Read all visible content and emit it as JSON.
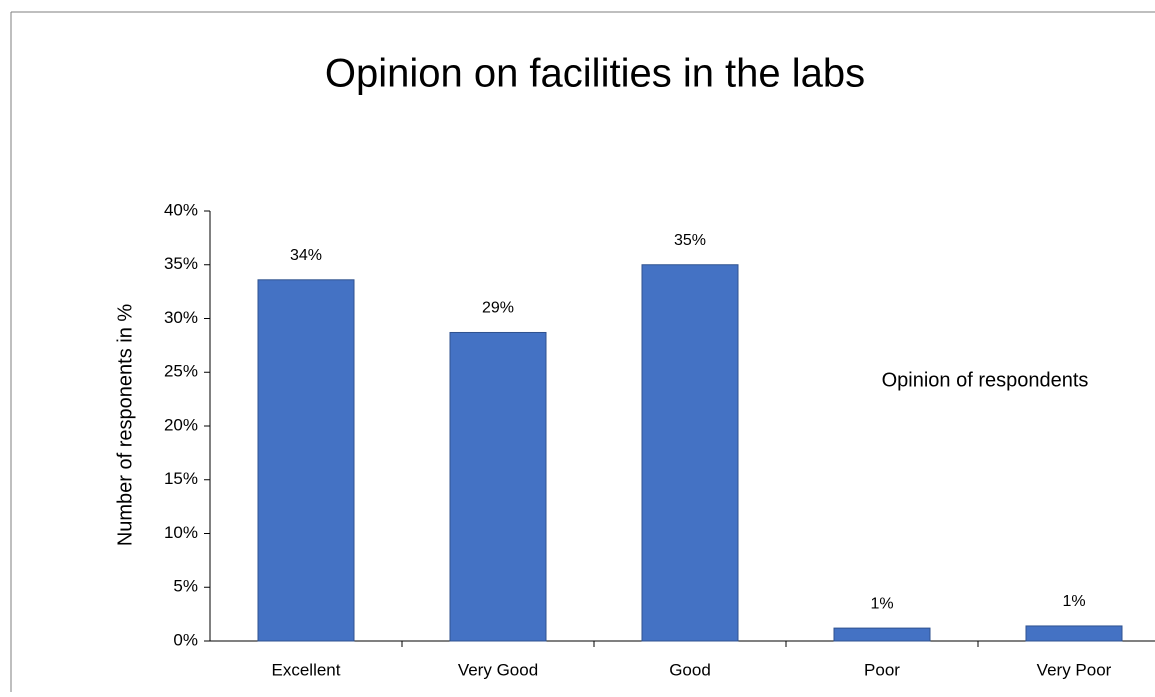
{
  "chart_data": {
    "type": "bar",
    "title": "Opinion on facilities in the labs",
    "y_label": "Number of responents in %",
    "annotation": "Opinion of respondents",
    "categories": [
      "Excellent",
      "Very Good",
      "Good",
      "Poor",
      "Very Poor"
    ],
    "values": [
      33.6,
      28.7,
      35,
      1.2,
      1.4
    ],
    "value_labels": [
      "34%",
      "29%",
      "35%",
      "1%",
      "1%"
    ],
    "color": "#4472c4",
    "ylim": [
      0,
      40
    ],
    "yticks": [
      {
        "value": 0,
        "label": "0%"
      },
      {
        "value": 5,
        "label": "5%"
      },
      {
        "value": 10,
        "label": "10%"
      },
      {
        "value": 15,
        "label": "15%"
      },
      {
        "value": 20,
        "label": "20%"
      },
      {
        "value": 25,
        "label": "25%"
      },
      {
        "value": 30,
        "label": "30%"
      },
      {
        "value": 35,
        "label": "35%"
      },
      {
        "value": 40,
        "label": "40%"
      }
    ],
    "grid": false
  }
}
